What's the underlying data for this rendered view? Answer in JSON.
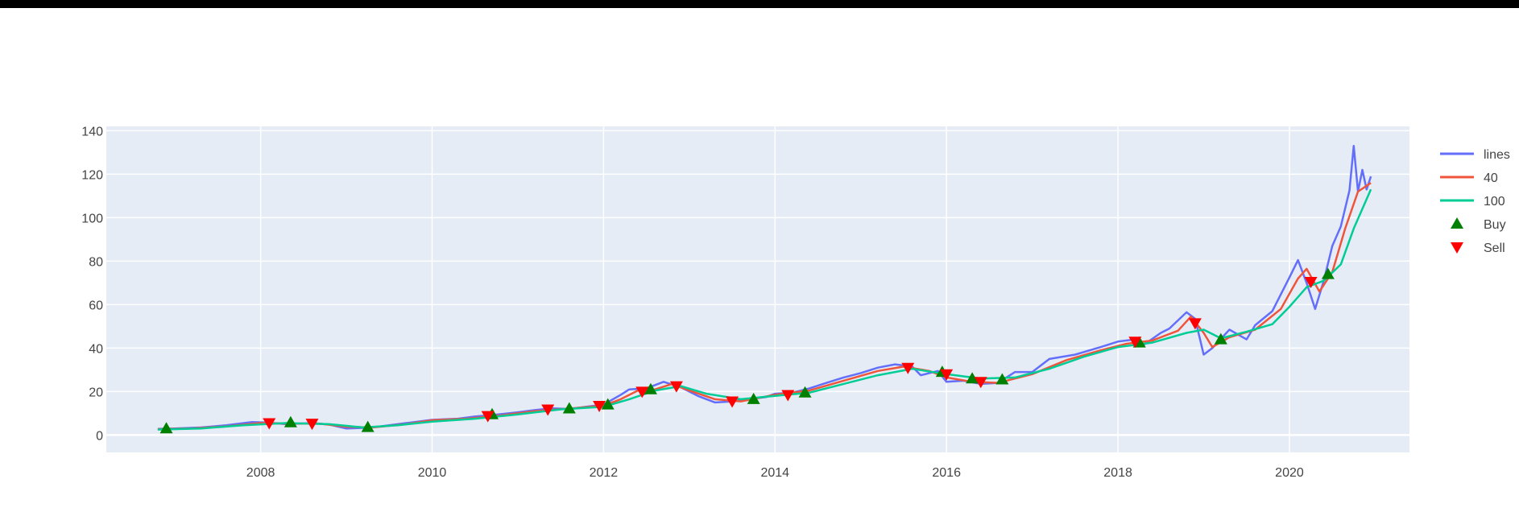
{
  "chart_data": {
    "type": "line",
    "title": "",
    "xlabel": "",
    "ylabel": "",
    "xlim": [
      2006.2,
      2021.4
    ],
    "ylim": [
      -8,
      142
    ],
    "x_ticks": [
      {
        "value": 2008,
        "label": "2008"
      },
      {
        "value": 2010,
        "label": "2010"
      },
      {
        "value": 2012,
        "label": "2012"
      },
      {
        "value": 2014,
        "label": "2014"
      },
      {
        "value": 2016,
        "label": "2016"
      },
      {
        "value": 2018,
        "label": "2018"
      },
      {
        "value": 2020,
        "label": "2020"
      }
    ],
    "y_ticks": [
      {
        "value": 0,
        "label": "0"
      },
      {
        "value": 20,
        "label": "20"
      },
      {
        "value": 40,
        "label": "40"
      },
      {
        "value": 60,
        "label": "60"
      },
      {
        "value": 80,
        "label": "80"
      },
      {
        "value": 100,
        "label": "100"
      },
      {
        "value": 120,
        "label": "120"
      },
      {
        "value": 140,
        "label": "140"
      }
    ],
    "grid": true,
    "legend_position": "top-right",
    "plot_background": "#E5ECF6",
    "series": [
      {
        "name": "lines",
        "kind": "line",
        "color": "#636EFA",
        "points": [
          [
            2006.8,
            2.8
          ],
          [
            2007.0,
            3.0
          ],
          [
            2007.3,
            3.5
          ],
          [
            2007.6,
            4.5
          ],
          [
            2007.9,
            6.0
          ],
          [
            2008.1,
            5.7
          ],
          [
            2008.3,
            5.0
          ],
          [
            2008.6,
            5.5
          ],
          [
            2008.8,
            4.8
          ],
          [
            2009.0,
            3.0
          ],
          [
            2009.2,
            3.3
          ],
          [
            2009.4,
            4.0
          ],
          [
            2009.7,
            5.5
          ],
          [
            2010.0,
            7.0
          ],
          [
            2010.3,
            7.5
          ],
          [
            2010.5,
            8.5
          ],
          [
            2010.7,
            9.2
          ],
          [
            2011.0,
            10.5
          ],
          [
            2011.2,
            11.5
          ],
          [
            2011.4,
            12.3
          ],
          [
            2011.6,
            12.0
          ],
          [
            2011.8,
            13.0
          ],
          [
            2012.0,
            14.0
          ],
          [
            2012.2,
            18.5
          ],
          [
            2012.3,
            21.0
          ],
          [
            2012.5,
            21.5
          ],
          [
            2012.7,
            24.5
          ],
          [
            2012.9,
            22.0
          ],
          [
            2013.1,
            18.0
          ],
          [
            2013.3,
            15.0
          ],
          [
            2013.5,
            15.5
          ],
          [
            2013.7,
            16.5
          ],
          [
            2013.9,
            17.5
          ],
          [
            2014.0,
            19.0
          ],
          [
            2014.2,
            19.5
          ],
          [
            2014.4,
            21.5
          ],
          [
            2014.6,
            24.0
          ],
          [
            2014.8,
            26.5
          ],
          [
            2015.0,
            28.5
          ],
          [
            2015.2,
            31.0
          ],
          [
            2015.4,
            32.5
          ],
          [
            2015.6,
            31.5
          ],
          [
            2015.7,
            27.5
          ],
          [
            2015.9,
            29.5
          ],
          [
            2016.0,
            24.5
          ],
          [
            2016.2,
            25.0
          ],
          [
            2016.4,
            23.5
          ],
          [
            2016.6,
            24.0
          ],
          [
            2016.8,
            29.0
          ],
          [
            2017.0,
            29.0
          ],
          [
            2017.2,
            35.0
          ],
          [
            2017.5,
            37.0
          ],
          [
            2017.8,
            40.5
          ],
          [
            2018.0,
            43.0
          ],
          [
            2018.2,
            44.0
          ],
          [
            2018.3,
            41.5
          ],
          [
            2018.5,
            47.0
          ],
          [
            2018.6,
            49.0
          ],
          [
            2018.8,
            56.5
          ],
          [
            2018.9,
            53.5
          ],
          [
            2019.0,
            37.0
          ],
          [
            2019.1,
            40.0
          ],
          [
            2019.3,
            48.5
          ],
          [
            2019.5,
            44.0
          ],
          [
            2019.6,
            50.5
          ],
          [
            2019.8,
            57.0
          ],
          [
            2020.0,
            72.5
          ],
          [
            2020.1,
            80.5
          ],
          [
            2020.2,
            70.0
          ],
          [
            2020.3,
            58.0
          ],
          [
            2020.4,
            71.0
          ],
          [
            2020.5,
            87.0
          ],
          [
            2020.6,
            96.0
          ],
          [
            2020.7,
            112.5
          ],
          [
            2020.75,
            133.0
          ],
          [
            2020.8,
            112.0
          ],
          [
            2020.85,
            122.0
          ],
          [
            2020.9,
            113.0
          ],
          [
            2020.95,
            119.0
          ]
        ]
      },
      {
        "name": "40",
        "kind": "line",
        "color": "#EF553B",
        "points": [
          [
            2006.8,
            2.7
          ],
          [
            2007.2,
            3.0
          ],
          [
            2007.6,
            4.0
          ],
          [
            2008.0,
            5.5
          ],
          [
            2008.3,
            5.3
          ],
          [
            2008.7,
            5.2
          ],
          [
            2009.0,
            3.8
          ],
          [
            2009.3,
            3.5
          ],
          [
            2009.7,
            5.0
          ],
          [
            2010.0,
            6.8
          ],
          [
            2010.4,
            7.5
          ],
          [
            2010.8,
            9.0
          ],
          [
            2011.2,
            11.0
          ],
          [
            2011.6,
            12.2
          ],
          [
            2012.0,
            13.5
          ],
          [
            2012.2,
            16.5
          ],
          [
            2012.4,
            20.5
          ],
          [
            2012.6,
            21.0
          ],
          [
            2012.8,
            23.5
          ],
          [
            2013.0,
            20.5
          ],
          [
            2013.3,
            16.5
          ],
          [
            2013.6,
            15.5
          ],
          [
            2014.0,
            18.5
          ],
          [
            2014.4,
            20.5
          ],
          [
            2014.8,
            25.0
          ],
          [
            2015.2,
            29.5
          ],
          [
            2015.5,
            31.5
          ],
          [
            2015.8,
            29.5
          ],
          [
            2016.0,
            26.5
          ],
          [
            2016.3,
            24.5
          ],
          [
            2016.6,
            24.0
          ],
          [
            2017.0,
            28.0
          ],
          [
            2017.4,
            34.5
          ],
          [
            2017.8,
            39.0
          ],
          [
            2018.1,
            42.0
          ],
          [
            2018.4,
            43.5
          ],
          [
            2018.7,
            48.0
          ],
          [
            2018.85,
            54.5
          ],
          [
            2019.0,
            47.0
          ],
          [
            2019.1,
            40.5
          ],
          [
            2019.3,
            45.0
          ],
          [
            2019.6,
            48.5
          ],
          [
            2019.9,
            58.0
          ],
          [
            2020.1,
            72.0
          ],
          [
            2020.2,
            76.5
          ],
          [
            2020.35,
            66.0
          ],
          [
            2020.5,
            75.0
          ],
          [
            2020.65,
            95.0
          ],
          [
            2020.8,
            112.0
          ],
          [
            2020.95,
            116.0
          ]
        ]
      },
      {
        "name": "100",
        "kind": "line",
        "color": "#00CC96",
        "points": [
          [
            2006.8,
            2.5
          ],
          [
            2007.3,
            3.0
          ],
          [
            2007.8,
            4.5
          ],
          [
            2008.3,
            5.5
          ],
          [
            2008.8,
            5.0
          ],
          [
            2009.2,
            3.5
          ],
          [
            2009.6,
            4.5
          ],
          [
            2010.0,
            6.2
          ],
          [
            2010.5,
            7.5
          ],
          [
            2011.0,
            9.5
          ],
          [
            2011.5,
            11.8
          ],
          [
            2012.0,
            13.0
          ],
          [
            2012.3,
            16.5
          ],
          [
            2012.6,
            20.5
          ],
          [
            2012.9,
            22.5
          ],
          [
            2013.2,
            19.0
          ],
          [
            2013.6,
            16.5
          ],
          [
            2014.0,
            18.0
          ],
          [
            2014.4,
            19.5
          ],
          [
            2014.8,
            23.5
          ],
          [
            2015.2,
            27.5
          ],
          [
            2015.6,
            30.5
          ],
          [
            2016.0,
            28.0
          ],
          [
            2016.4,
            26.0
          ],
          [
            2016.8,
            26.5
          ],
          [
            2017.2,
            30.5
          ],
          [
            2017.6,
            36.0
          ],
          [
            2018.0,
            40.5
          ],
          [
            2018.4,
            42.5
          ],
          [
            2018.8,
            47.0
          ],
          [
            2019.0,
            48.5
          ],
          [
            2019.2,
            44.5
          ],
          [
            2019.5,
            47.5
          ],
          [
            2019.8,
            51.0
          ],
          [
            2020.0,
            59.0
          ],
          [
            2020.2,
            68.0
          ],
          [
            2020.4,
            71.0
          ],
          [
            2020.6,
            78.5
          ],
          [
            2020.75,
            95.0
          ],
          [
            2020.95,
            113.0
          ]
        ]
      },
      {
        "name": "Buy",
        "kind": "marker",
        "marker": "triangle-up",
        "color": "#008000",
        "points": [
          [
            2006.9,
            3.0
          ],
          [
            2008.35,
            5.8
          ],
          [
            2009.25,
            3.6
          ],
          [
            2010.7,
            9.5
          ],
          [
            2011.6,
            12.2
          ],
          [
            2012.05,
            14.0
          ],
          [
            2012.55,
            21.0
          ],
          [
            2013.75,
            16.5
          ],
          [
            2014.35,
            19.5
          ],
          [
            2015.95,
            29.0
          ],
          [
            2016.3,
            26.0
          ],
          [
            2016.65,
            25.5
          ],
          [
            2018.25,
            42.5
          ],
          [
            2019.2,
            44.0
          ],
          [
            2020.45,
            74.0
          ]
        ]
      },
      {
        "name": "Sell",
        "kind": "marker",
        "marker": "triangle-down",
        "color": "#FF0000",
        "points": [
          [
            2008.1,
            5.5
          ],
          [
            2008.6,
            5.3
          ],
          [
            2010.65,
            8.8
          ],
          [
            2011.35,
            11.8
          ],
          [
            2011.95,
            13.5
          ],
          [
            2012.45,
            20.0
          ],
          [
            2012.85,
            22.5
          ],
          [
            2013.5,
            15.5
          ],
          [
            2014.15,
            18.5
          ],
          [
            2015.55,
            31.0
          ],
          [
            2016.0,
            28.0
          ],
          [
            2016.4,
            24.5
          ],
          [
            2018.2,
            43.0
          ],
          [
            2018.9,
            51.5
          ],
          [
            2020.25,
            70.5
          ]
        ]
      }
    ]
  }
}
